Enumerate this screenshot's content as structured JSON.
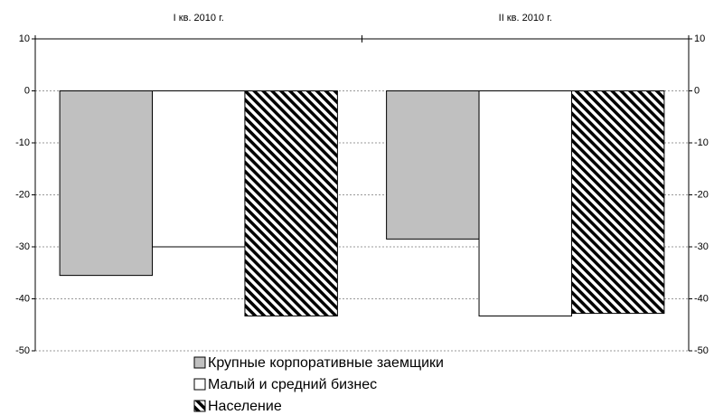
{
  "chart_data": {
    "type": "bar",
    "categories": [
      "I кв. 2010 г.",
      "II кв. 2010 г."
    ],
    "series": [
      {
        "name": "Крупные корпоративные заемщики",
        "color": "#c0c0c0",
        "values": [
          -35.5,
          -28.5
        ]
      },
      {
        "name": "Малый и средний бизнес",
        "color": "#ffffff",
        "values": [
          -30,
          -43.3
        ]
      },
      {
        "name": "Население",
        "color": "#000000",
        "hatch": true,
        "values": [
          -43.3,
          -42.8
        ]
      }
    ],
    "ylim": [
      -50,
      10
    ],
    "yticks": [
      -50,
      -40,
      -30,
      -20,
      -10,
      0,
      10
    ],
    "y2lim": [
      -50,
      10
    ],
    "y2ticks": [
      -50,
      -40,
      -30,
      -20,
      -10,
      0,
      10
    ],
    "grid": true,
    "legend": "bottom"
  }
}
